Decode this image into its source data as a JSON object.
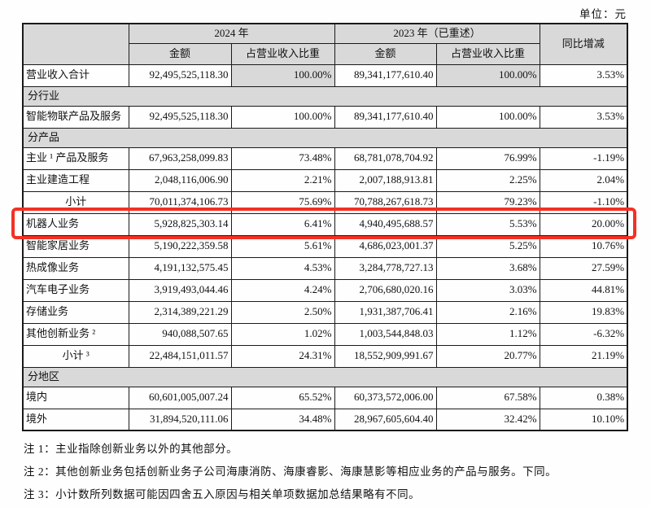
{
  "unit_label": "单位：元",
  "colors": {
    "header_bg": "#d9d9d9",
    "section_bg": "#d9d9d9",
    "highlight_border": "#f43023",
    "table_border": "#1a1a1a"
  },
  "table": {
    "header": {
      "year_2024": "2024 年",
      "year_2023": "2023 年（已重述）",
      "yoy": "同比增减",
      "amount_2024": "金额",
      "pct_2024": "占营业收入比重",
      "amount_2023": "金额",
      "pct_2023": "占营业收入比重"
    },
    "rows": [
      {
        "type": "data",
        "label": "营业收入合计",
        "a24": "92,495,525,118.30",
        "p24": "100.00%",
        "a23": "89,341,177,610.40",
        "p23": "100.00%",
        "yoy": "3.53%",
        "shade_pct": true
      },
      {
        "type": "section",
        "label": "分行业"
      },
      {
        "type": "data",
        "label": "智能物联产品及服务",
        "a24": "92,495,525,118.30",
        "p24": "100.00%",
        "a23": "89,341,177,610.40",
        "p23": "100.00%",
        "yoy": "3.53%"
      },
      {
        "type": "section",
        "label": "分产品"
      },
      {
        "type": "data",
        "label": "主业 ¹ 产品及服务",
        "a24": "67,963,258,099.83",
        "p24": "73.48%",
        "a23": "68,781,078,704.92",
        "p23": "76.99%",
        "yoy": "-1.19%"
      },
      {
        "type": "data",
        "label": "主业建造工程",
        "a24": "2,048,116,006.90",
        "p24": "2.21%",
        "a23": "2,007,188,913.81",
        "p23": "2.25%",
        "yoy": "2.04%"
      },
      {
        "type": "data",
        "label": "小计",
        "center": true,
        "a24": "70,011,374,106.73",
        "p24": "75.69%",
        "a23": "70,788,267,618.73",
        "p23": "79.23%",
        "yoy": "-1.10%"
      },
      {
        "type": "data",
        "label": "机器人业务",
        "highlight": true,
        "a24": "5,928,825,303.14",
        "p24": "6.41%",
        "a23": "4,940,495,688.57",
        "p23": "5.53%",
        "yoy": "20.00%"
      },
      {
        "type": "data",
        "label": "智能家居业务",
        "a24": "5,190,222,359.58",
        "p24": "5.61%",
        "a23": "4,686,023,001.37",
        "p23": "5.25%",
        "yoy": "10.76%"
      },
      {
        "type": "data",
        "label": "热成像业务",
        "a24": "4,191,132,575.45",
        "p24": "4.53%",
        "a23": "3,284,778,727.13",
        "p23": "3.68%",
        "yoy": "27.59%"
      },
      {
        "type": "data",
        "label": "汽车电子业务",
        "a24": "3,919,493,044.46",
        "p24": "4.24%",
        "a23": "2,706,680,020.16",
        "p23": "3.03%",
        "yoy": "44.81%"
      },
      {
        "type": "data",
        "label": "存储业务",
        "a24": "2,314,389,221.29",
        "p24": "2.50%",
        "a23": "1,931,387,706.41",
        "p23": "2.16%",
        "yoy": "19.83%"
      },
      {
        "type": "data",
        "label": "其他创新业务 ²",
        "a24": "940,088,507.65",
        "p24": "1.02%",
        "a23": "1,003,544,848.03",
        "p23": "1.12%",
        "yoy": "-6.32%"
      },
      {
        "type": "data",
        "label": "小计 ³",
        "center": true,
        "a24": "22,484,151,011.57",
        "p24": "24.31%",
        "a23": "18,552,909,991.67",
        "p23": "20.77%",
        "yoy": "21.19%"
      },
      {
        "type": "section",
        "label": "分地区"
      },
      {
        "type": "data",
        "label": "境内",
        "a24": "60,601,005,007.24",
        "p24": "65.52%",
        "a23": "60,373,572,006.00",
        "p23": "67.58%",
        "yoy": "0.38%"
      },
      {
        "type": "data",
        "label": "境外",
        "a24": "31,894,520,111.06",
        "p24": "34.48%",
        "a23": "28,967,605,604.40",
        "p23": "32.42%",
        "yoy": "10.10%"
      }
    ]
  },
  "notes": [
    "注 1：主业指除创新业务以外的其他部分。",
    "注 2：其他创新业务包括创新业务子公司海康消防、海康睿影、海康慧影等相应业务的产品与服务。下同。",
    "注 3：小计数所列数据可能因四舍五入原因与相关单项数据加总结果略有不同。"
  ]
}
